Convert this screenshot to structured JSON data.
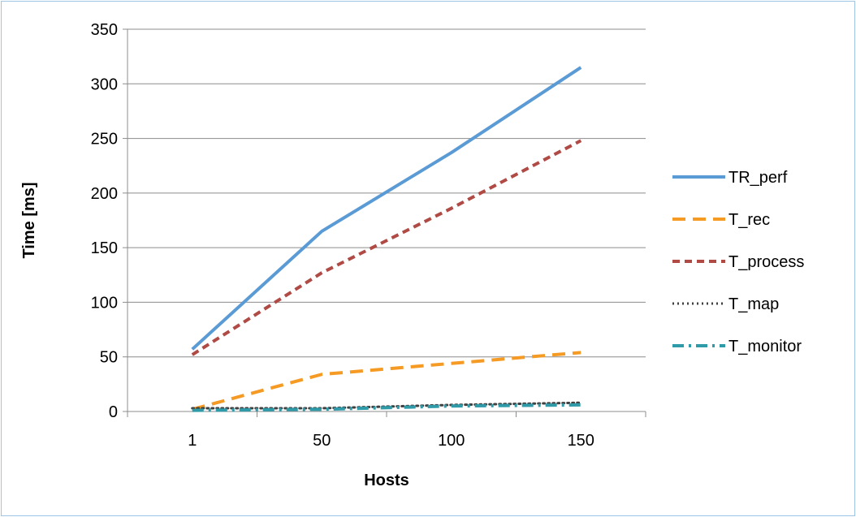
{
  "chart_data": {
    "type": "line",
    "categories": [
      "1",
      "50",
      "100",
      "150"
    ],
    "xlabel": "Hosts",
    "ylabel": "Time [ms]",
    "ylim": [
      0,
      350
    ],
    "yticks": [
      0,
      50,
      100,
      150,
      200,
      250,
      300,
      350
    ],
    "grid": true,
    "legend_position": "right",
    "series": [
      {
        "name": "TR_perf",
        "values": [
          57,
          165,
          237,
          315
        ],
        "color": "#5b9bd5",
        "style": "solid"
      },
      {
        "name": "T_rec",
        "values": [
          2,
          34,
          44,
          54
        ],
        "color": "#f59a23",
        "style": "dash"
      },
      {
        "name": "T_process",
        "values": [
          52,
          127,
          186,
          248
        ],
        "color": "#b04a45",
        "style": "shortdash"
      },
      {
        "name": "T_map",
        "values": [
          3,
          3,
          6,
          8
        ],
        "color": "#404040",
        "style": "dot"
      },
      {
        "name": "T_monitor",
        "values": [
          1,
          2,
          5,
          6
        ],
        "color": "#2f9aa8",
        "style": "dashdot"
      }
    ]
  }
}
